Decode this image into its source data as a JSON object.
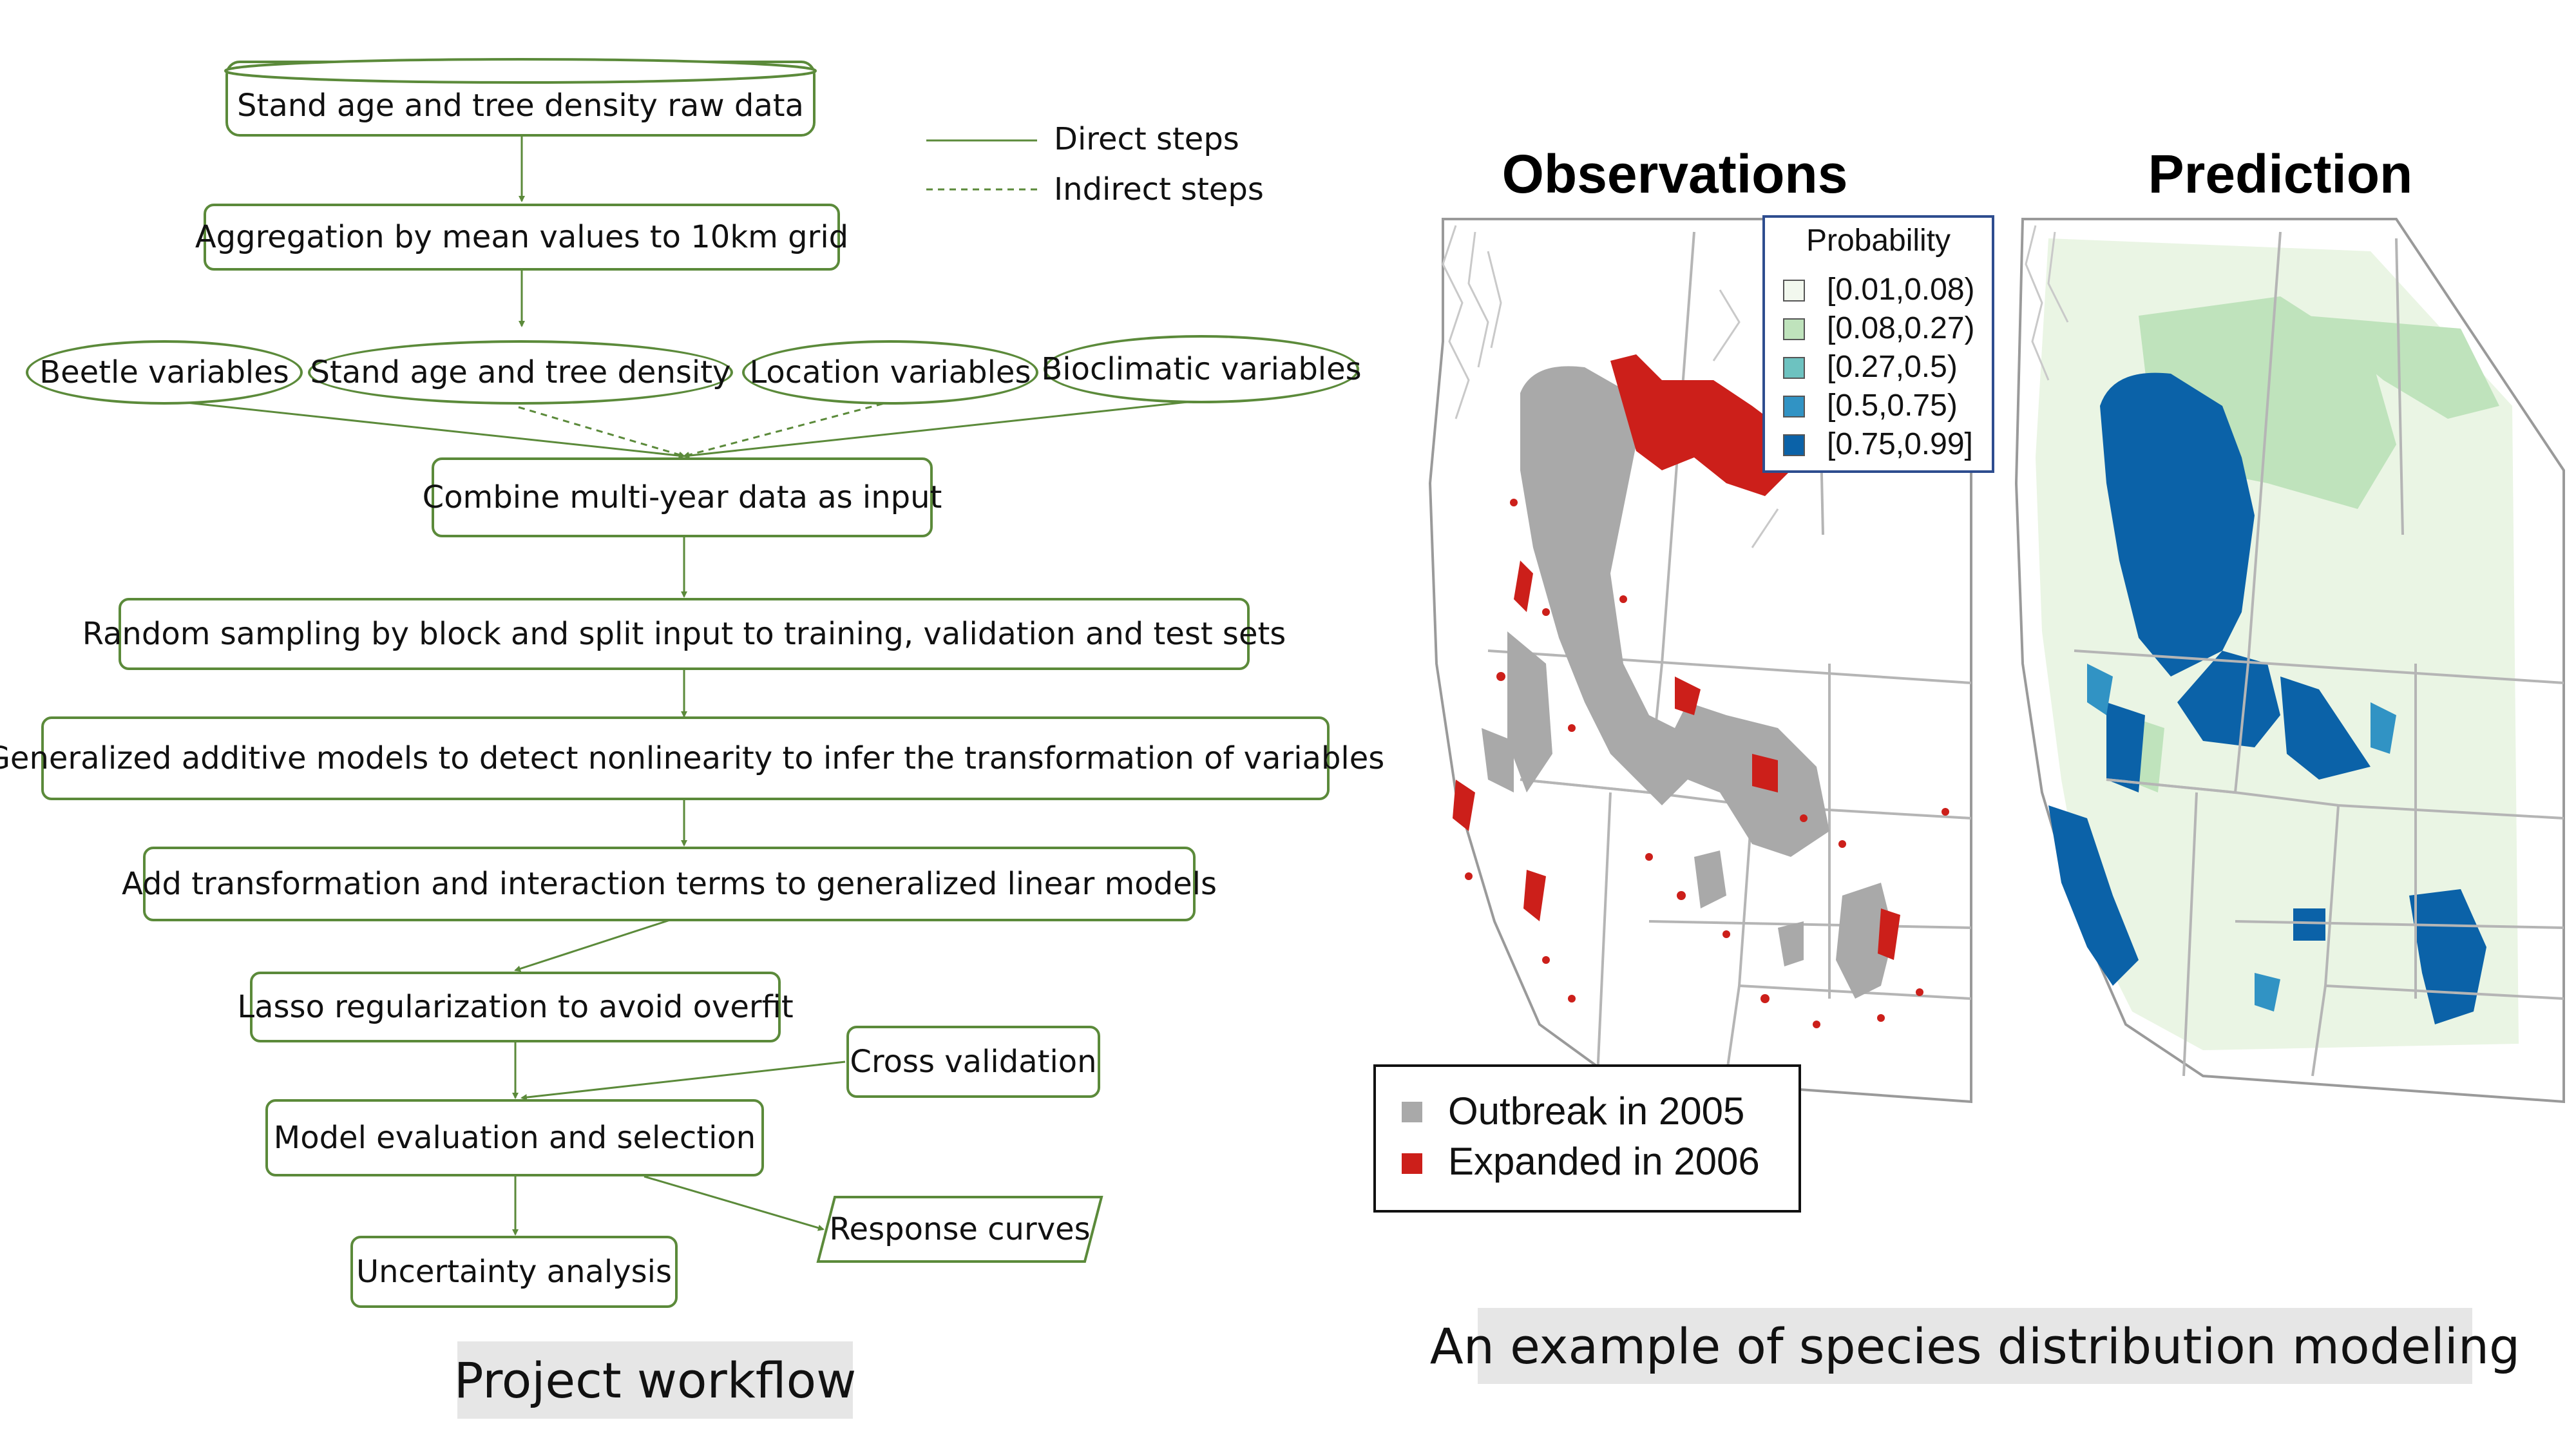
{
  "workflow": {
    "start": "Stand age and tree density raw data",
    "aggregate": "Aggregation by mean values to 10km grid",
    "beetle": "Beetle variables",
    "stand": "Stand age and tree density",
    "location": "Location variables",
    "bioclim": "Bioclimatic variables",
    "combine": "Combine multi-year data as input",
    "sampling": "Random sampling by block and split input to training, validation and test sets",
    "gam": "Generalized additive models to detect nonlinearity to infer the transformation of variables",
    "glm": "Add transformation and interaction terms to generalized linear models",
    "lasso": "Lasso regularization to avoid overfit",
    "cv": "Cross validation",
    "evaluation": "Model evaluation and selection",
    "response": "Response curves",
    "uncertainty": "Uncertainty analysis"
  },
  "line_legend": {
    "direct": "Direct steps",
    "indirect": "Indirect steps"
  },
  "left_caption": "Project workflow",
  "maps": {
    "obs_title": "Observations",
    "pred_title": "Prediction",
    "probability_legend": {
      "title": "Probability",
      "items": [
        {
          "label": "[0.01,0.08)",
          "color": "#f2f8ee"
        },
        {
          "label": "[0.08,0.27)",
          "color": "#bfe3bc"
        },
        {
          "label": "[0.27,0.5)",
          "color": "#6dc2c0"
        },
        {
          "label": "[0.5,0.75)",
          "color": "#3193c4"
        },
        {
          "label": "[0.75,0.99]",
          "color": "#0b62a8"
        }
      ]
    },
    "outbreak_legend": {
      "items": [
        {
          "label": "Outbreak in 2005",
          "color": "#a9a9a9"
        },
        {
          "label": "Expanded in 2006",
          "color": "#cc1f1a"
        }
      ]
    },
    "caption": "An example of species distribution modeling"
  }
}
